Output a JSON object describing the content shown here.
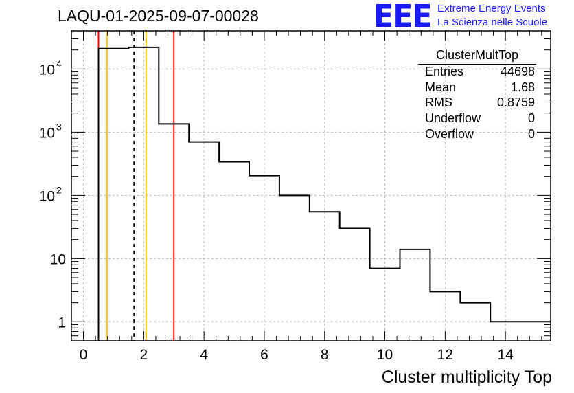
{
  "header": {
    "title": "LAQU-01-2025-09-07-00028"
  },
  "logo": {
    "mark": "EEE",
    "line1": "Extreme Energy Events",
    "line2": "La Scienza nelle Scuole",
    "color": "#1a1aff"
  },
  "stats": {
    "name": "ClusterMultTop",
    "rows": [
      {
        "label": "Entries",
        "value": "44698"
      },
      {
        "label": "Mean",
        "value": "1.68"
      },
      {
        "label": "RMS",
        "value": "0.8759"
      },
      {
        "label": "Underflow",
        "value": "0"
      },
      {
        "label": "Overflow",
        "value": "0"
      }
    ]
  },
  "chart_data": {
    "type": "histogram",
    "title": "LAQU-01-2025-09-07-00028",
    "xlabel": "Cluster multiplicity Top",
    "ylabel": "",
    "yscale": "log",
    "xlim": [
      -0.4,
      15.5
    ],
    "ylim": [
      0.5,
      40000
    ],
    "grid": true,
    "bin_width": 1,
    "bins": [
      {
        "low": 0.5,
        "high": 1.5,
        "count": 21000
      },
      {
        "low": 1.5,
        "high": 2.5,
        "count": 22000
      },
      {
        "low": 2.5,
        "high": 3.5,
        "count": 1350
      },
      {
        "low": 3.5,
        "high": 4.5,
        "count": 700
      },
      {
        "low": 4.5,
        "high": 5.5,
        "count": 340
      },
      {
        "low": 5.5,
        "high": 6.5,
        "count": 205
      },
      {
        "low": 6.5,
        "high": 7.5,
        "count": 100
      },
      {
        "low": 7.5,
        "high": 8.5,
        "count": 55
      },
      {
        "low": 8.5,
        "high": 9.5,
        "count": 30
      },
      {
        "low": 9.5,
        "high": 10.5,
        "count": 7
      },
      {
        "low": 10.5,
        "high": 11.5,
        "count": 14
      },
      {
        "low": 11.5,
        "high": 12.5,
        "count": 3
      },
      {
        "low": 12.5,
        "high": 13.5,
        "count": 2
      },
      {
        "low": 13.5,
        "high": 15.5,
        "count": 1
      }
    ],
    "x_ticks": [
      "0",
      "2",
      "4",
      "6",
      "8",
      "10",
      "12",
      "14"
    ],
    "x_tick_values": [
      0,
      2,
      4,
      6,
      8,
      10,
      12,
      14
    ],
    "y_ticks": [
      {
        "value": 1,
        "label": "1"
      },
      {
        "value": 10,
        "label": "10"
      },
      {
        "value": 100,
        "base": "10",
        "exp": "2"
      },
      {
        "value": 1000,
        "base": "10",
        "exp": "3"
      },
      {
        "value": 10000,
        "base": "10",
        "exp": "4"
      }
    ],
    "vertical_lines": [
      {
        "x": 0.5,
        "color": "#ff0000",
        "style": "solid"
      },
      {
        "x": 0.78,
        "color": "#ffcc00",
        "style": "solid"
      },
      {
        "x": 1.68,
        "color": "#000000",
        "style": "dashed"
      },
      {
        "x": 2.08,
        "color": "#ffcc00",
        "style": "solid"
      },
      {
        "x": 3.0,
        "color": "#ff0000",
        "style": "solid"
      }
    ]
  }
}
